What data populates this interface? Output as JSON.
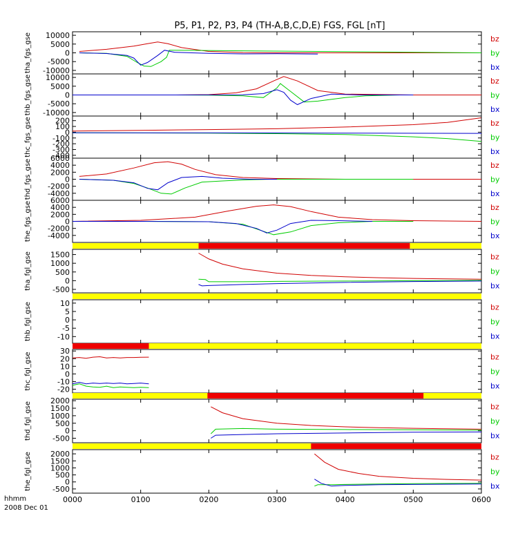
{
  "title": "P5, P1, P2, P3, P4 (TH-A,B,C,D,E) FGS, FGL [nT]",
  "time_axis": {
    "unit_label": "hhmm",
    "date_label": "2008 Dec 01",
    "ticks": [
      "0000",
      "0100",
      "0200",
      "0300",
      "0400",
      "0500",
      "0600"
    ],
    "range_hours": [
      0,
      6
    ]
  },
  "colors": {
    "bz": "#d00000",
    "by": "#00cc00",
    "bx": "#0000cc",
    "bar_yellow": "#ffff00",
    "bar_red": "#ee0000",
    "frame": "#000000"
  },
  "component_labels": [
    "bz",
    "by",
    "bx"
  ],
  "chart_data": [
    {
      "type": "line",
      "ylabel": "tha_fgs_gse",
      "ylim": [
        -12000,
        12000
      ],
      "yticks": [
        10000,
        5000,
        0,
        -5000,
        -10000
      ],
      "ytick_labels": [
        "10000",
        "5000",
        "0",
        "-5000",
        "-10000"
      ],
      "series": [
        {
          "name": "bz",
          "x": [
            0.1,
            0.5,
            0.9,
            1.1,
            1.25,
            1.4,
            1.6,
            2.0,
            2.5,
            3.0,
            6.0
          ],
          "y": [
            800,
            2000,
            3800,
            5200,
            6200,
            5200,
            3000,
            800,
            150,
            0,
            0
          ]
        },
        {
          "name": "by",
          "x": [
            0.1,
            0.5,
            0.8,
            0.95,
            1.05,
            1.15,
            1.3,
            1.38,
            1.42,
            6.0
          ],
          "y": [
            0,
            -300,
            -2000,
            -5500,
            -7500,
            -7800,
            -5000,
            -2500,
            1500,
            0
          ]
        },
        {
          "name": "bx",
          "x": [
            0.1,
            0.5,
            0.8,
            0.9,
            1.0,
            1.1,
            1.25,
            1.35,
            1.5,
            2.0,
            2.5,
            3.0,
            3.6
          ],
          "y": [
            0,
            -400,
            -1500,
            -3000,
            -7000,
            -5500,
            -1500,
            1500,
            300,
            -300,
            -600,
            -500,
            -700
          ]
        }
      ]
    },
    {
      "type": "line",
      "ylabel": "thb_fgs_gse",
      "ylim": [
        -12000,
        12000
      ],
      "yticks": [
        10000,
        5000,
        0,
        -5000,
        -10000
      ],
      "ytick_labels": [
        "10000",
        "5000",
        "0",
        "-5000",
        "-10000"
      ],
      "series": [
        {
          "name": "bz",
          "x": [
            0.0,
            1.5,
            2.0,
            2.4,
            2.7,
            2.95,
            3.1,
            3.3,
            3.6,
            4.0,
            5.0,
            6.0
          ],
          "y": [
            0,
            0,
            200,
            1200,
            3500,
            8000,
            10500,
            8000,
            2500,
            500,
            0,
            0
          ]
        },
        {
          "name": "by",
          "x": [
            0.0,
            1.5,
            2.0,
            2.5,
            2.8,
            3.0,
            3.05,
            3.2,
            3.4,
            3.6,
            4.0,
            4.3,
            4.8
          ],
          "y": [
            0,
            0,
            -100,
            -500,
            -1500,
            4000,
            6500,
            2000,
            -4000,
            -3500,
            -1500,
            -500,
            0
          ]
        },
        {
          "name": "bx",
          "x": [
            0.0,
            1.5,
            2.5,
            2.8,
            3.0,
            3.1,
            3.2,
            3.3,
            3.5,
            3.8,
            4.2,
            5.0
          ],
          "y": [
            0,
            0,
            100,
            800,
            3000,
            1500,
            -3000,
            -5500,
            -2000,
            500,
            0,
            0
          ]
        }
      ]
    },
    {
      "type": "line",
      "ylabel": "thc_fgs_gse",
      "ylim": [
        -450,
        280
      ],
      "yticks": [
        200,
        100,
        0,
        -100,
        -200,
        -300,
        -400
      ],
      "ytick_labels": [
        "200",
        "100",
        "0",
        "-100",
        "-200",
        "-300",
        "-400"
      ],
      "series": [
        {
          "name": "bz",
          "x": [
            0.0,
            1.0,
            2.0,
            3.0,
            4.0,
            5.0,
            5.5,
            6.0
          ],
          "y": [
            20,
            32,
            45,
            60,
            90,
            130,
            170,
            250
          ]
        },
        {
          "name": "by",
          "x": [
            0.0,
            2.0,
            3.0,
            4.0,
            4.5,
            5.0,
            5.5,
            6.0
          ],
          "y": [
            -10,
            -15,
            -25,
            -40,
            -60,
            -80,
            -110,
            -160
          ]
        },
        {
          "name": "bx",
          "x": [
            0.0,
            2.0,
            4.0,
            6.0
          ],
          "y": [
            -10,
            -12,
            -15,
            -20
          ]
        }
      ]
    },
    {
      "type": "line",
      "ylabel": "thd_fgs_gse",
      "ylim": [
        -6000,
        6000
      ],
      "yticks": [
        6000,
        4000,
        2000,
        0,
        -2000,
        -4000
      ],
      "ytick_labels": [
        "6000",
        "4000",
        "2000",
        "0",
        "-2000",
        "-4000"
      ],
      "series": [
        {
          "name": "bz",
          "x": [
            0.1,
            0.5,
            0.9,
            1.2,
            1.4,
            1.6,
            1.8,
            2.1,
            2.5,
            3.0,
            4.0,
            6.0
          ],
          "y": [
            800,
            1500,
            3200,
            4700,
            5000,
            4300,
            2800,
            1300,
            500,
            200,
            0,
            0
          ]
        },
        {
          "name": "by",
          "x": [
            0.1,
            0.6,
            0.9,
            1.1,
            1.3,
            1.45,
            1.65,
            1.9,
            2.2,
            2.5,
            2.9,
            5.0
          ],
          "y": [
            0,
            -300,
            -1200,
            -2500,
            -4000,
            -4200,
            -2500,
            -800,
            -500,
            -200,
            0,
            0
          ]
        },
        {
          "name": "bx",
          "x": [
            0.1,
            0.6,
            0.9,
            1.1,
            1.25,
            1.4,
            1.6,
            1.9,
            2.2,
            2.6,
            3.0
          ],
          "y": [
            0,
            -300,
            -1000,
            -2600,
            -3000,
            -1000,
            500,
            800,
            300,
            0,
            0
          ]
        }
      ]
    },
    {
      "type": "line",
      "ylabel": "the_fgs_gse",
      "ylim": [
        -6000,
        6000
      ],
      "yticks": [
        6000,
        4000,
        2000,
        0,
        -2000,
        -4000
      ],
      "ytick_labels": [
        "6000",
        "4000",
        "2000",
        "0",
        "-2000",
        "-4000"
      ],
      "series": [
        {
          "name": "bz",
          "x": [
            0.0,
            1.0,
            1.8,
            2.3,
            2.7,
            2.95,
            3.2,
            3.5,
            3.9,
            4.4,
            5.0,
            6.0
          ],
          "y": [
            0,
            300,
            1200,
            3000,
            4300,
            4700,
            4200,
            2800,
            1200,
            500,
            200,
            0
          ]
        },
        {
          "name": "by",
          "x": [
            0.0,
            1.0,
            2.0,
            2.5,
            2.75,
            2.95,
            3.2,
            3.5,
            3.9,
            4.4,
            5.0
          ],
          "y": [
            0,
            0,
            -100,
            -800,
            -2500,
            -3800,
            -3000,
            -1200,
            -400,
            0,
            0
          ]
        },
        {
          "name": "bx",
          "x": [
            0.0,
            1.0,
            2.0,
            2.4,
            2.7,
            2.85,
            3.0,
            3.2,
            3.5,
            3.9,
            4.4
          ],
          "y": [
            0,
            0,
            -100,
            -600,
            -2000,
            -3300,
            -2500,
            -600,
            300,
            200,
            0
          ]
        }
      ]
    },
    {
      "type": "line",
      "ylabel": "tha_fgl_gse",
      "ylim": [
        -700,
        1800
      ],
      "yticks": [
        1500,
        1000,
        500,
        0,
        -500
      ],
      "ytick_labels": [
        "1500",
        "1000",
        "500",
        "0",
        "-500"
      ],
      "bar": {
        "red_start": 1.85,
        "red_end": 4.95
      },
      "series": [
        {
          "name": "bz",
          "x": [
            1.85,
            2.0,
            2.2,
            2.5,
            3.0,
            3.5,
            4.0,
            4.5,
            5.0,
            5.5,
            6.0
          ],
          "y": [
            1580,
            1250,
            950,
            680,
            430,
            300,
            220,
            170,
            130,
            100,
            80
          ]
        },
        {
          "name": "by",
          "x": [
            1.85,
            1.95,
            2.0,
            2.5,
            3.0,
            4.0,
            5.0,
            6.0
          ],
          "y": [
            80,
            60,
            -60,
            -60,
            -40,
            -20,
            0,
            20
          ]
        },
        {
          "name": "bx",
          "x": [
            1.85,
            1.9,
            2.0,
            2.5,
            3.0,
            4.0,
            5.0,
            6.0
          ],
          "y": [
            -220,
            -300,
            -280,
            -220,
            -170,
            -100,
            -50,
            -20
          ]
        }
      ]
    },
    {
      "type": "line",
      "ylabel": "thb_fgl_gse",
      "ylim": [
        -14,
        12
      ],
      "yticks": [
        10,
        5,
        0,
        -5,
        -10
      ],
      "ytick_labels": [
        "10",
        "5",
        "0",
        "-5",
        "-10"
      ],
      "bar": null,
      "series": [
        {
          "name": "bz",
          "x": [],
          "y": []
        },
        {
          "name": "by",
          "x": [],
          "y": []
        },
        {
          "name": "bx",
          "x": [],
          "y": []
        }
      ]
    },
    {
      "type": "line",
      "ylabel": "thc_fgl_gse",
      "ylim": [
        -25,
        32
      ],
      "yticks": [
        30,
        20,
        10,
        0,
        -10,
        -20
      ],
      "ytick_labels": [
        "30",
        "20",
        "10",
        "0",
        "-10",
        "-20"
      ],
      "bar": {
        "red_start": 0.0,
        "red_end": 1.12
      },
      "series": [
        {
          "name": "bz",
          "x": [
            0.0,
            0.1,
            0.2,
            0.3,
            0.4,
            0.5,
            0.6,
            0.7,
            0.8,
            0.9,
            1.0,
            1.12
          ],
          "y": [
            21,
            21.5,
            20.5,
            22,
            22.5,
            21,
            21.5,
            21,
            21.5,
            21.5,
            21.8,
            22
          ]
        },
        {
          "name": "by",
          "x": [
            0.0,
            0.1,
            0.2,
            0.3,
            0.4,
            0.5,
            0.6,
            0.7,
            0.8,
            0.9,
            1.0,
            1.12
          ],
          "y": [
            -15,
            -13,
            -16,
            -17,
            -17.5,
            -16,
            -18,
            -17,
            -17.5,
            -18,
            -17.5,
            -18
          ]
        },
        {
          "name": "bx",
          "x": [
            0.0,
            0.1,
            0.2,
            0.3,
            0.4,
            0.5,
            0.6,
            0.7,
            0.8,
            0.9,
            1.0,
            1.12
          ],
          "y": [
            -13,
            -11,
            -13,
            -12,
            -12.5,
            -12,
            -12.5,
            -12,
            -13,
            -12.5,
            -12,
            -13
          ]
        }
      ]
    },
    {
      "type": "line",
      "ylabel": "thd_fgl_gse",
      "ylim": [
        -800,
        2100
      ],
      "yticks": [
        2000,
        1500,
        1000,
        500,
        0,
        -500
      ],
      "ytick_labels": [
        "2000",
        "1500",
        "1000",
        "500",
        "0",
        "-500"
      ],
      "bar": {
        "red_start": 1.98,
        "red_end": 5.15
      },
      "series": [
        {
          "name": "bz",
          "x": [
            2.03,
            2.2,
            2.5,
            3.0,
            3.5,
            4.0,
            4.5,
            5.0,
            5.5,
            6.0
          ],
          "y": [
            1600,
            1200,
            800,
            500,
            350,
            260,
            200,
            160,
            130,
            100
          ]
        },
        {
          "name": "by",
          "x": [
            2.03,
            2.1,
            2.5,
            3.0,
            4.0,
            5.0,
            6.0
          ],
          "y": [
            -200,
            100,
            150,
            100,
            80,
            60,
            40
          ]
        },
        {
          "name": "bx",
          "x": [
            2.03,
            2.1,
            2.5,
            3.0,
            4.0,
            5.0,
            6.0
          ],
          "y": [
            -500,
            -300,
            -250,
            -200,
            -150,
            -100,
            -80
          ]
        }
      ]
    },
    {
      "type": "line",
      "ylabel": "the_fgl_gse",
      "ylim": [
        -800,
        2300
      ],
      "yticks": [
        2000,
        1500,
        1000,
        500,
        0,
        -500
      ],
      "ytick_labels": [
        "2000",
        "1500",
        "1000",
        "500",
        "0",
        "-500"
      ],
      "bar": {
        "red_start": 3.5,
        "red_end": 6.0
      },
      "series": [
        {
          "name": "bz",
          "x": [
            3.55,
            3.7,
            3.9,
            4.2,
            4.5,
            5.0,
            5.5,
            6.0
          ],
          "y": [
            2000,
            1400,
            900,
            600,
            400,
            260,
            180,
            130
          ]
        },
        {
          "name": "by",
          "x": [
            3.55,
            3.6,
            3.8,
            4.0,
            4.5,
            5.0,
            6.0
          ],
          "y": [
            -300,
            -200,
            -200,
            -180,
            -150,
            -120,
            -100
          ]
        },
        {
          "name": "bx",
          "x": [
            3.55,
            3.65,
            3.8,
            4.0,
            4.5,
            5.0,
            6.0
          ],
          "y": [
            200,
            -100,
            -300,
            -250,
            -200,
            -180,
            -150
          ]
        }
      ]
    }
  ]
}
